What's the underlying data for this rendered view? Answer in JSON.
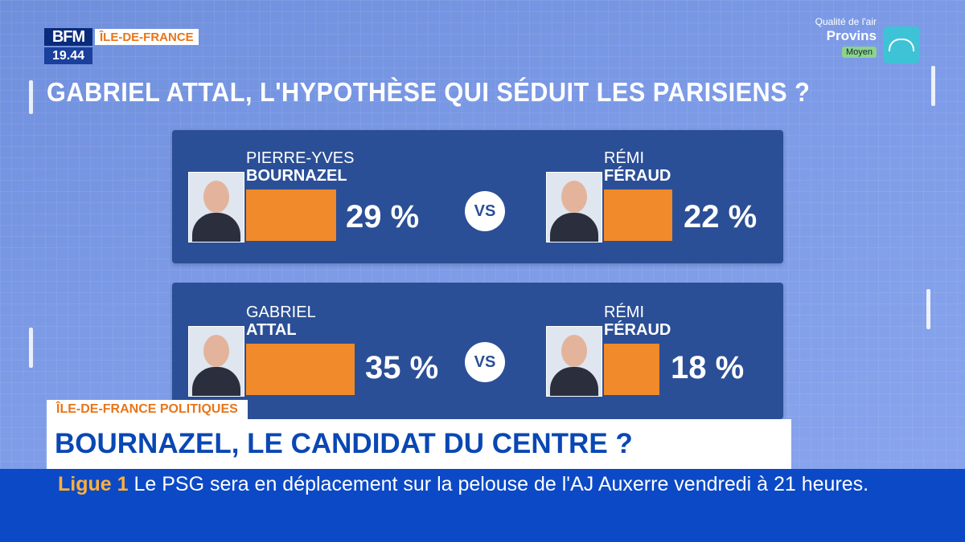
{
  "channel": {
    "brand": "BFM",
    "region": "ÎLE-DE-FRANCE",
    "clock": "19.44"
  },
  "air_quality": {
    "label": "Qualité de l'air",
    "city": "Provins",
    "level": "Moyen",
    "icon": "air-quality-icon"
  },
  "headline": "GABRIEL ATTAL, L'HYPOTHÈSE QUI SÉDUIT LES PARISIENS ?",
  "matchups": [
    {
      "vs": "VS",
      "left": {
        "first": "PIERRE-YVES",
        "last": "BOURNAZEL",
        "percent_label": "29 %",
        "value": 29
      },
      "right": {
        "first": "RÉMI",
        "last": "FÉRAUD",
        "percent_label": "22 %",
        "value": 22
      }
    },
    {
      "vs": "VS",
      "left": {
        "first": "GABRIEL",
        "last": "ATTAL",
        "percent_label": "35 %",
        "value": 35
      },
      "right": {
        "first": "RÉMI",
        "last": "FÉRAUD",
        "percent_label": "18 %",
        "value": 18
      }
    }
  ],
  "lower_third": {
    "tag": "ÎLE-DE-FRANCE POLITIQUES",
    "title": "BOURNAZEL, LE CANDIDAT DU CENTRE ?"
  },
  "ticker": {
    "tag": "Ligue 1",
    "text": "Le PSG sera en déplacement sur la pelouse de l'AJ Auxerre vendredi à 21 heures."
  },
  "colors": {
    "bar": "#f08a2a",
    "card": "#2b4f96",
    "ticker": "#0b49c6",
    "accent": "#e8751a"
  }
}
